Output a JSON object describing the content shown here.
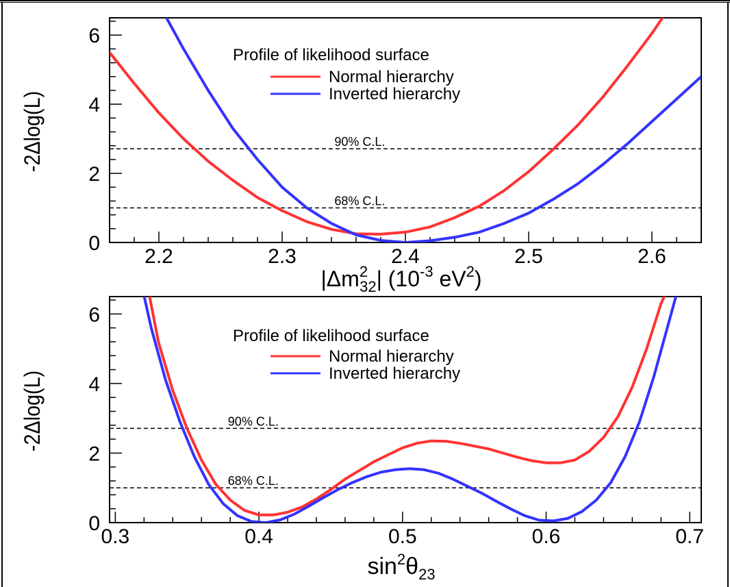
{
  "chart_data": [
    {
      "type": "line",
      "xlim": [
        2.16,
        2.64
      ],
      "ylim": [
        0,
        6.5
      ],
      "xticks": [
        "2.2",
        "2.3",
        "2.4",
        "2.5",
        "2.6"
      ],
      "xtick_values": [
        2.2,
        2.3,
        2.4,
        2.5,
        2.6
      ],
      "yticks": [
        "0",
        "2",
        "4",
        "6"
      ],
      "ytick_values": [
        0,
        2,
        4,
        6
      ],
      "ylabel": "-2Δlog(L)",
      "xlabel": {
        "prefix": "|Δm",
        "sup": "2",
        "sub": "32",
        "mid": "| (10",
        "exp": "-3",
        "unit": " eV",
        "unit_sup": "2",
        "close": ")"
      },
      "legend": {
        "title": "Profile of likelihood surface",
        "placement": "top-center"
      },
      "reference_lines": [
        {
          "label": "90% C.L.",
          "y": 2.71
        },
        {
          "label": "68% C.L.",
          "y": 1.0
        }
      ],
      "series": [
        {
          "name": "Normal hierarchy",
          "color": "#ff3333",
          "x": [
            2.16,
            2.18,
            2.2,
            2.22,
            2.24,
            2.26,
            2.28,
            2.3,
            2.32,
            2.34,
            2.36,
            2.38,
            2.4,
            2.42,
            2.44,
            2.46,
            2.48,
            2.5,
            2.52,
            2.54,
            2.56,
            2.58,
            2.6,
            2.62
          ],
          "y": [
            5.5,
            4.6,
            3.75,
            3.0,
            2.35,
            1.8,
            1.3,
            0.92,
            0.6,
            0.38,
            0.25,
            0.24,
            0.3,
            0.45,
            0.72,
            1.05,
            1.5,
            2.05,
            2.7,
            3.4,
            4.2,
            5.1,
            6.05,
            7.1
          ]
        },
        {
          "name": "Inverted hierarchy",
          "color": "#3333ff",
          "x": [
            2.2,
            2.22,
            2.24,
            2.26,
            2.28,
            2.3,
            2.32,
            2.34,
            2.36,
            2.38,
            2.4,
            2.42,
            2.44,
            2.46,
            2.48,
            2.5,
            2.52,
            2.54,
            2.56,
            2.58,
            2.6,
            2.62,
            2.64
          ],
          "y": [
            6.9,
            5.6,
            4.4,
            3.3,
            2.4,
            1.6,
            1.0,
            0.55,
            0.22,
            0.06,
            0.0,
            0.05,
            0.15,
            0.3,
            0.55,
            0.85,
            1.25,
            1.7,
            2.25,
            2.85,
            3.5,
            4.15,
            4.8
          ]
        }
      ]
    },
    {
      "type": "line",
      "xlim": [
        0.296,
        0.708
      ],
      "ylim": [
        0,
        6.5
      ],
      "xticks": [
        "0.3",
        "0.4",
        "0.5",
        "0.6",
        "0.7"
      ],
      "xtick_values": [
        0.3,
        0.4,
        0.5,
        0.6,
        0.7
      ],
      "yticks": [
        "0",
        "2",
        "4",
        "6"
      ],
      "ytick_values": [
        0,
        2,
        4,
        6
      ],
      "ylabel": "-2Δlog(L)",
      "xlabel": {
        "prefix": "sin",
        "sup": "2",
        "mid": "θ",
        "sub": "23"
      },
      "legend": {
        "title": "Profile of likelihood surface",
        "placement": "top-center"
      },
      "reference_lines": [
        {
          "label": "90% C.L.",
          "y": 2.71
        },
        {
          "label": "68% C.L.",
          "y": 1.0
        }
      ],
      "series": [
        {
          "name": "Normal hierarchy",
          "color": "#ff3333",
          "x": [
            0.322,
            0.33,
            0.34,
            0.35,
            0.36,
            0.37,
            0.38,
            0.39,
            0.4,
            0.41,
            0.42,
            0.43,
            0.44,
            0.45,
            0.46,
            0.47,
            0.48,
            0.49,
            0.5,
            0.51,
            0.52,
            0.53,
            0.54,
            0.55,
            0.56,
            0.57,
            0.58,
            0.59,
            0.6,
            0.61,
            0.62,
            0.63,
            0.64,
            0.65,
            0.66,
            0.67,
            0.68,
            0.69
          ],
          "y": [
            6.9,
            5.2,
            3.8,
            2.7,
            1.8,
            1.1,
            0.65,
            0.35,
            0.22,
            0.22,
            0.3,
            0.45,
            0.68,
            0.95,
            1.25,
            1.5,
            1.75,
            1.95,
            2.15,
            2.28,
            2.35,
            2.34,
            2.28,
            2.2,
            2.12,
            2.0,
            1.88,
            1.78,
            1.72,
            1.72,
            1.8,
            2.05,
            2.45,
            3.05,
            3.9,
            5.0,
            6.3,
            7.2
          ]
        },
        {
          "name": "Inverted hierarchy",
          "color": "#3333ff",
          "x": [
            0.318,
            0.325,
            0.335,
            0.345,
            0.355,
            0.365,
            0.375,
            0.385,
            0.395,
            0.405,
            0.415,
            0.425,
            0.435,
            0.445,
            0.455,
            0.465,
            0.475,
            0.485,
            0.495,
            0.505,
            0.515,
            0.525,
            0.535,
            0.545,
            0.555,
            0.565,
            0.575,
            0.585,
            0.595,
            0.605,
            0.615,
            0.625,
            0.635,
            0.645,
            0.655,
            0.665,
            0.675,
            0.685,
            0.695
          ],
          "y": [
            6.9,
            5.6,
            4.1,
            2.9,
            1.9,
            1.1,
            0.55,
            0.2,
            0.03,
            0.0,
            0.08,
            0.25,
            0.48,
            0.72,
            0.95,
            1.15,
            1.32,
            1.45,
            1.52,
            1.55,
            1.52,
            1.42,
            1.25,
            1.05,
            0.85,
            0.62,
            0.4,
            0.2,
            0.07,
            0.05,
            0.12,
            0.32,
            0.65,
            1.15,
            1.9,
            2.9,
            4.2,
            5.7,
            7.2
          ]
        }
      ]
    }
  ]
}
